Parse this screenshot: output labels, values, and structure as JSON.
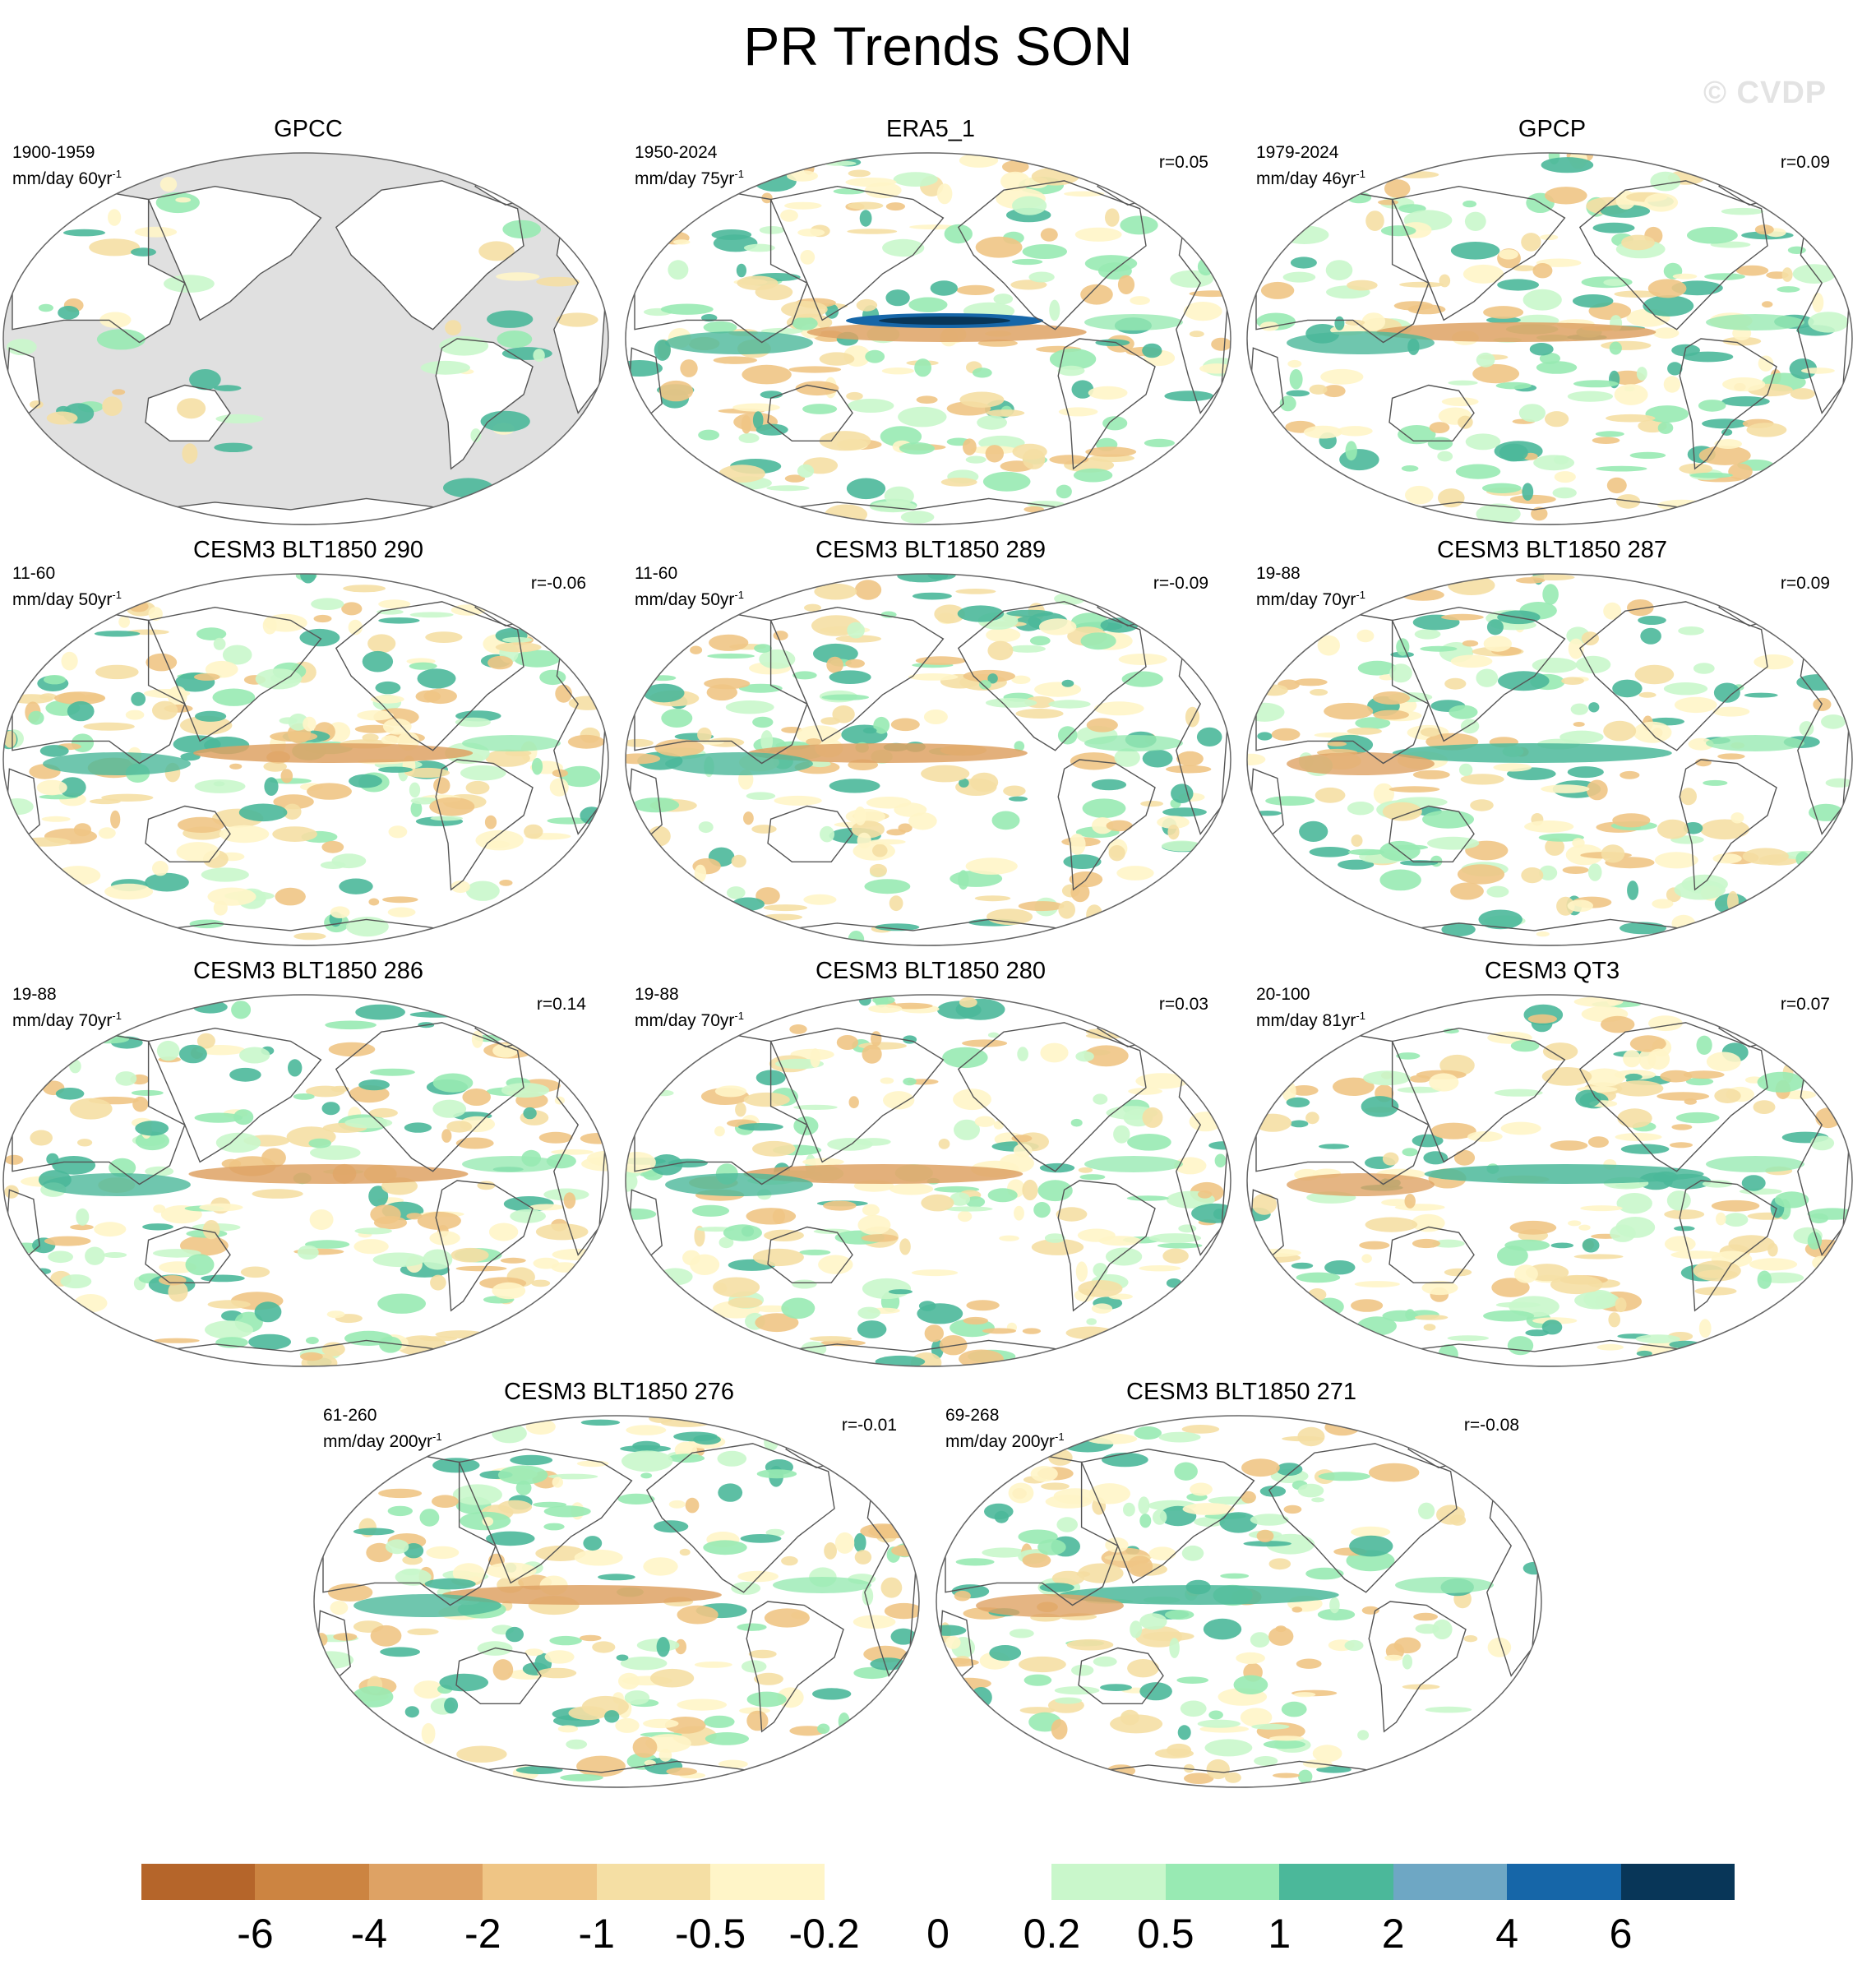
{
  "title": "PR Trends SON",
  "watermark": "© CVDP",
  "panels": [
    {
      "name": "GPCC",
      "period": "1900-1959",
      "units": "mm/day 60yr",
      "corr": "",
      "masked": true,
      "coast": "#555555",
      "ocean": "#e0e0e0"
    },
    {
      "name": "ERA5_1",
      "period": "1950-2024",
      "units": "mm/day 75yr",
      "corr": "r=0.05",
      "masked": false,
      "coast": "#555555",
      "ocean": "#ffffff"
    },
    {
      "name": "GPCP",
      "period": "1979-2024",
      "units": "mm/day 46yr",
      "corr": "r=0.09",
      "masked": false,
      "coast": "#555555",
      "ocean": "#ffffff"
    },
    {
      "name": "CESM3 BLT1850 290",
      "period": "11-60",
      "units": "mm/day 50yr",
      "corr": "r=-0.06",
      "masked": false,
      "coast": "#555555",
      "ocean": "#ffffff"
    },
    {
      "name": "CESM3 BLT1850 289",
      "period": "11-60",
      "units": "mm/day 50yr",
      "corr": "r=-0.09",
      "masked": false,
      "coast": "#555555",
      "ocean": "#ffffff"
    },
    {
      "name": "CESM3 BLT1850 287",
      "period": "19-88",
      "units": "mm/day 70yr",
      "corr": "r=0.09",
      "masked": false,
      "coast": "#555555",
      "ocean": "#ffffff"
    },
    {
      "name": "CESM3 BLT1850 286",
      "period": "19-88",
      "units": "mm/day 70yr",
      "corr": "r=0.14",
      "masked": false,
      "coast": "#555555",
      "ocean": "#ffffff"
    },
    {
      "name": "CESM3 BLT1850 280",
      "period": "19-88",
      "units": "mm/day 70yr",
      "corr": "r=0.03",
      "masked": false,
      "coast": "#555555",
      "ocean": "#ffffff"
    },
    {
      "name": "CESM3 QT3",
      "period": "20-100",
      "units": "mm/day 81yr",
      "corr": "r=0.07",
      "masked": false,
      "coast": "#555555",
      "ocean": "#ffffff"
    },
    {
      "name": "CESM3 BLT1850 276",
      "period": "61-260",
      "units": "mm/day 200yr",
      "corr": "r=-0.01",
      "masked": false,
      "coast": "#555555",
      "ocean": "#ffffff"
    },
    {
      "name": "CESM3 BLT1850 271",
      "period": "69-268",
      "units": "mm/day 200yr",
      "corr": "r=-0.08",
      "masked": false,
      "coast": "#555555",
      "ocean": "#ffffff"
    }
  ],
  "units_superscript": "-1",
  "colorbar": {
    "colors": [
      "#b5652a",
      "#cc8441",
      "#dea264",
      "#efc585",
      "#f5dfa4",
      "#fff5c8",
      "#ffffff",
      "#ffffff",
      "#c9f7cb",
      "#98eab3",
      "#4bb89a",
      "#6ea7c4",
      "#1666a8",
      "#083658"
    ],
    "labels": [
      "-6",
      "-4",
      "-2",
      "-1",
      "-0.5",
      "-0.2",
      "0",
      "0.2",
      "0.5",
      "1",
      "2",
      "4",
      "6"
    ]
  }
}
